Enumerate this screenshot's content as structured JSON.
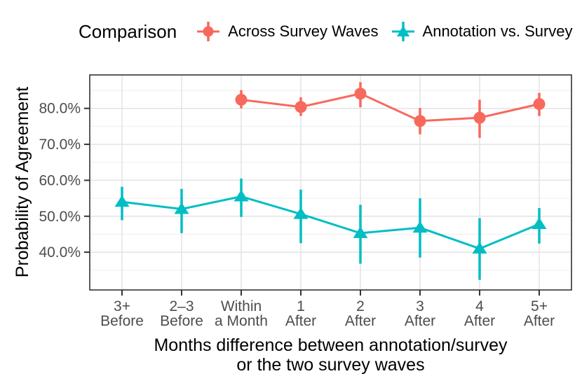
{
  "legend": {
    "title": "Comparison"
  },
  "chart_data": {
    "type": "pointrange-line",
    "title": "",
    "ylabel": "Probability of Agreement",
    "xlabel_line1": "Months difference between annotation/survey",
    "xlabel_line2": "or the two survey waves",
    "categories_line1": [
      "3+",
      "2–3",
      "Within",
      "1",
      "2",
      "3",
      "4",
      "5+"
    ],
    "categories_line2": [
      "Before",
      "Before",
      "a Month",
      "After",
      "After",
      "After",
      "After",
      "After"
    ],
    "yticks": [
      {
        "value": 80,
        "label": "80.0%"
      },
      {
        "value": 70,
        "label": "70.0%"
      },
      {
        "value": 60,
        "label": "60.0%"
      },
      {
        "value": 50,
        "label": "50.0%"
      },
      {
        "value": 40,
        "label": "40.0%"
      }
    ],
    "minor_gridlines_at": [
      85,
      75,
      65,
      55,
      45,
      35
    ],
    "ylim": [
      29.5,
      89.3
    ],
    "grid": {
      "major": true,
      "minor": true
    },
    "legend_position": "top",
    "series": [
      {
        "name": "Across Survey Waves",
        "marker": "circle",
        "color": "#F7695C",
        "values": [
          null,
          null,
          82.4,
          80.4,
          84.1,
          76.5,
          77.4,
          81.2
        ],
        "ci_low": [
          null,
          null,
          80.0,
          77.9,
          80.3,
          72.8,
          71.8,
          77.9
        ],
        "ci_high": [
          null,
          null,
          85.1,
          83.1,
          87.3,
          80.1,
          82.4,
          84.3
        ]
      },
      {
        "name": "Annotation vs. Survey",
        "marker": "triangle",
        "color": "#00BEC4",
        "values": [
          54.0,
          52.0,
          55.5,
          50.6,
          45.3,
          46.8,
          41.0,
          47.8
        ],
        "ci_low": [
          48.9,
          45.3,
          49.8,
          42.5,
          36.8,
          38.5,
          32.3,
          42.4
        ],
        "ci_high": [
          58.2,
          57.6,
          60.5,
          57.4,
          53.2,
          55.0,
          49.5,
          52.3
        ]
      }
    ],
    "colors": {
      "axis_text": "#4D4D4D",
      "axis_title": "#000000",
      "panel_border": "#333333",
      "tick_mark": "#333333",
      "grid_major": "#E3E3E3",
      "grid_minor": "#EDEDED"
    }
  }
}
